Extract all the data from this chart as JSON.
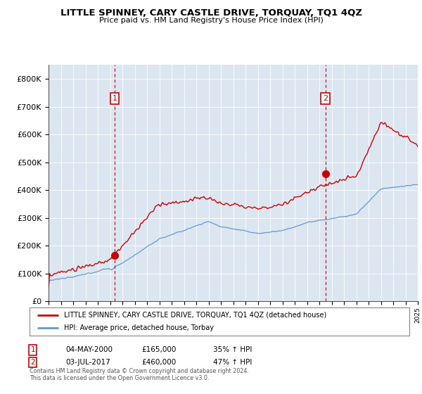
{
  "title": "LITTLE SPINNEY, CARY CASTLE DRIVE, TORQUAY, TQ1 4QZ",
  "subtitle": "Price paid vs. HM Land Registry's House Price Index (HPI)",
  "legend_line1": "LITTLE SPINNEY, CARY CASTLE DRIVE, TORQUAY, TQ1 4QZ (detached house)",
  "legend_line2": "HPI: Average price, detached house, Torbay",
  "annotation1_label": "1",
  "annotation1_date": "04-MAY-2000",
  "annotation1_price": "£165,000",
  "annotation1_hpi": "35% ↑ HPI",
  "annotation2_label": "2",
  "annotation2_date": "03-JUL-2017",
  "annotation2_price": "£460,000",
  "annotation2_hpi": "47% ↑ HPI",
  "footnote1": "Contains HM Land Registry data © Crown copyright and database right 2024.",
  "footnote2": "This data is licensed under the Open Government Licence v3.0.",
  "red_color": "#cc0000",
  "blue_color": "#6699cc",
  "plot_bg": "#dce6f1",
  "ylim_min": 0,
  "ylim_max": 850000,
  "x_start_year": 1995,
  "x_end_year": 2025,
  "sale1_year": 2000.37,
  "sale1_price": 165000,
  "sale2_year": 2017.5,
  "sale2_price": 460000
}
